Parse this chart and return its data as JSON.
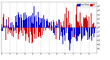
{
  "background_color": "#ffffff",
  "bar_color_blue": "#0000cc",
  "bar_color_red": "#cc0000",
  "legend_blue_label": "Dew Point",
  "legend_red_label": "RH",
  "ylim": [
    -60,
    60
  ],
  "xlim": [
    0,
    365
  ],
  "grid_color": "#aaaaaa",
  "num_points": 365,
  "seed": 42,
  "yticks": [
    -50,
    -40,
    -30,
    -20,
    -10,
    0,
    10,
    20,
    30,
    40,
    50
  ],
  "ytick_labels": [
    "5'",
    "4'",
    "3'",
    "2'",
    "1'",
    "0'",
    "1",
    "2",
    "3",
    "4",
    "5"
  ],
  "figwidth": 1.6,
  "figheight": 0.87,
  "dpi": 100
}
